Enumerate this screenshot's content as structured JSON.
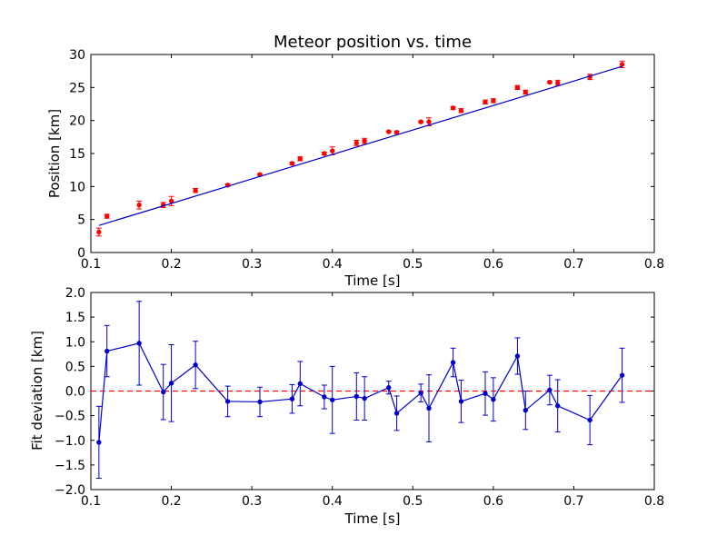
{
  "chart_data": [
    {
      "type": "scatter",
      "title": "Meteor position vs. time",
      "xlabel": "Time [s]",
      "ylabel": "Position [km]",
      "xlim": [
        0.1,
        0.8
      ],
      "ylim": [
        0,
        30
      ],
      "xticks": [
        "0.1",
        "0.2",
        "0.3",
        "0.4",
        "0.5",
        "0.6",
        "0.7",
        "0.8"
      ],
      "yticks": [
        "0",
        "5",
        "10",
        "15",
        "20",
        "25",
        "30"
      ],
      "grid": false,
      "series": [
        {
          "kind": "errorbar",
          "color": "#ff0000",
          "x": [
            0.11,
            0.12,
            0.16,
            0.19,
            0.2,
            0.23,
            0.27,
            0.31,
            0.35,
            0.36,
            0.39,
            0.4,
            0.43,
            0.44,
            0.47,
            0.48,
            0.51,
            0.52,
            0.55,
            0.56,
            0.59,
            0.6,
            0.63,
            0.64,
            0.67,
            0.68,
            0.72,
            0.76
          ],
          "y": [
            3.1,
            5.5,
            7.2,
            7.2,
            7.8,
            9.4,
            10.2,
            11.8,
            13.5,
            14.2,
            15.0,
            15.4,
            16.6,
            16.9,
            18.3,
            18.2,
            19.8,
            19.8,
            21.9,
            21.5,
            22.8,
            23.0,
            25.0,
            24.3,
            25.8,
            25.7,
            26.6,
            28.5
          ],
          "err": [
            0.6,
            0.3,
            0.6,
            0.4,
            0.7,
            0.3,
            0.2,
            0.15,
            0.2,
            0.3,
            0.2,
            0.6,
            0.4,
            0.4,
            0.1,
            0.2,
            0.15,
            0.6,
            0.2,
            0.3,
            0.3,
            0.3,
            0.3,
            0.3,
            0.15,
            0.4,
            0.4,
            0.5
          ]
        },
        {
          "kind": "fit-line",
          "color": "#0000cc",
          "x": [
            0.11,
            0.76
          ],
          "y": [
            4.1,
            28.2
          ]
        }
      ]
    },
    {
      "type": "line",
      "xlabel": "Time [s]",
      "ylabel": "Fit deviation [km]",
      "xlim": [
        0.1,
        0.8
      ],
      "ylim": [
        -2.0,
        2.0
      ],
      "xticks": [
        "0.1",
        "0.2",
        "0.3",
        "0.4",
        "0.5",
        "0.6",
        "0.7",
        "0.8"
      ],
      "yticks": [
        "−2.0",
        "−1.5",
        "−1.0",
        "−0.5",
        "0.0",
        "0.5",
        "1.0",
        "1.5",
        "2.0"
      ],
      "grid": false,
      "zero_line_color": "#ff0000",
      "series": [
        {
          "kind": "errorbar-line",
          "color": "#0000cc",
          "x": [
            0.11,
            0.12,
            0.16,
            0.19,
            0.2,
            0.23,
            0.27,
            0.31,
            0.35,
            0.36,
            0.39,
            0.4,
            0.43,
            0.44,
            0.47,
            0.48,
            0.51,
            0.52,
            0.55,
            0.56,
            0.59,
            0.6,
            0.63,
            0.64,
            0.67,
            0.68,
            0.72,
            0.76
          ],
          "y": [
            -1.04,
            0.81,
            0.97,
            -0.02,
            0.16,
            0.53,
            -0.21,
            -0.22,
            -0.16,
            0.15,
            -0.12,
            -0.18,
            -0.11,
            -0.15,
            0.07,
            -0.45,
            -0.04,
            -0.35,
            0.58,
            -0.21,
            -0.05,
            -0.17,
            0.71,
            -0.39,
            0.02,
            -0.3,
            -0.59,
            0.32
          ],
          "err": [
            0.73,
            0.52,
            0.85,
            0.56,
            0.78,
            0.48,
            0.31,
            0.3,
            0.29,
            0.45,
            0.24,
            0.68,
            0.48,
            0.44,
            0.13,
            0.35,
            0.18,
            0.68,
            0.29,
            0.43,
            0.44,
            0.44,
            0.37,
            0.39,
            0.3,
            0.53,
            0.5,
            0.55
          ]
        }
      ]
    }
  ]
}
